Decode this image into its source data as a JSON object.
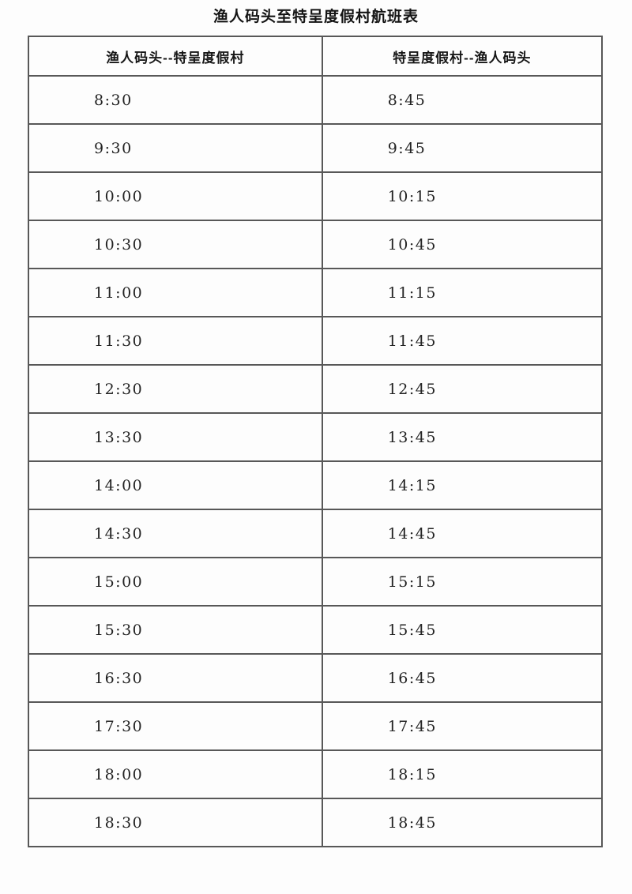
{
  "page": {
    "title": "渔人码头至特呈度假村航班表"
  },
  "table": {
    "headers": {
      "outbound": "渔人码头--特呈度假村",
      "return": "特呈度假村--渔人码头"
    },
    "rows": [
      {
        "outbound": "8:30",
        "return": "8:45"
      },
      {
        "outbound": "9:30",
        "return": "9:45"
      },
      {
        "outbound": "10:00",
        "return": "10:15"
      },
      {
        "outbound": "10:30",
        "return": "10:45"
      },
      {
        "outbound": "11:00",
        "return": "11:15"
      },
      {
        "outbound": "11:30",
        "return": "11:45"
      },
      {
        "outbound": "12:30",
        "return": "12:45"
      },
      {
        "outbound": "13:30",
        "return": "13:45"
      },
      {
        "outbound": "14:00",
        "return": "14:15"
      },
      {
        "outbound": "14:30",
        "return": "14:45"
      },
      {
        "outbound": "15:00",
        "return": "15:15"
      },
      {
        "outbound": "15:30",
        "return": "15:45"
      },
      {
        "outbound": "16:30",
        "return": "16:45"
      },
      {
        "outbound": "17:30",
        "return": "17:45"
      },
      {
        "outbound": "18:00",
        "return": "18:15"
      },
      {
        "outbound": "18:30",
        "return": "18:45"
      }
    ]
  }
}
